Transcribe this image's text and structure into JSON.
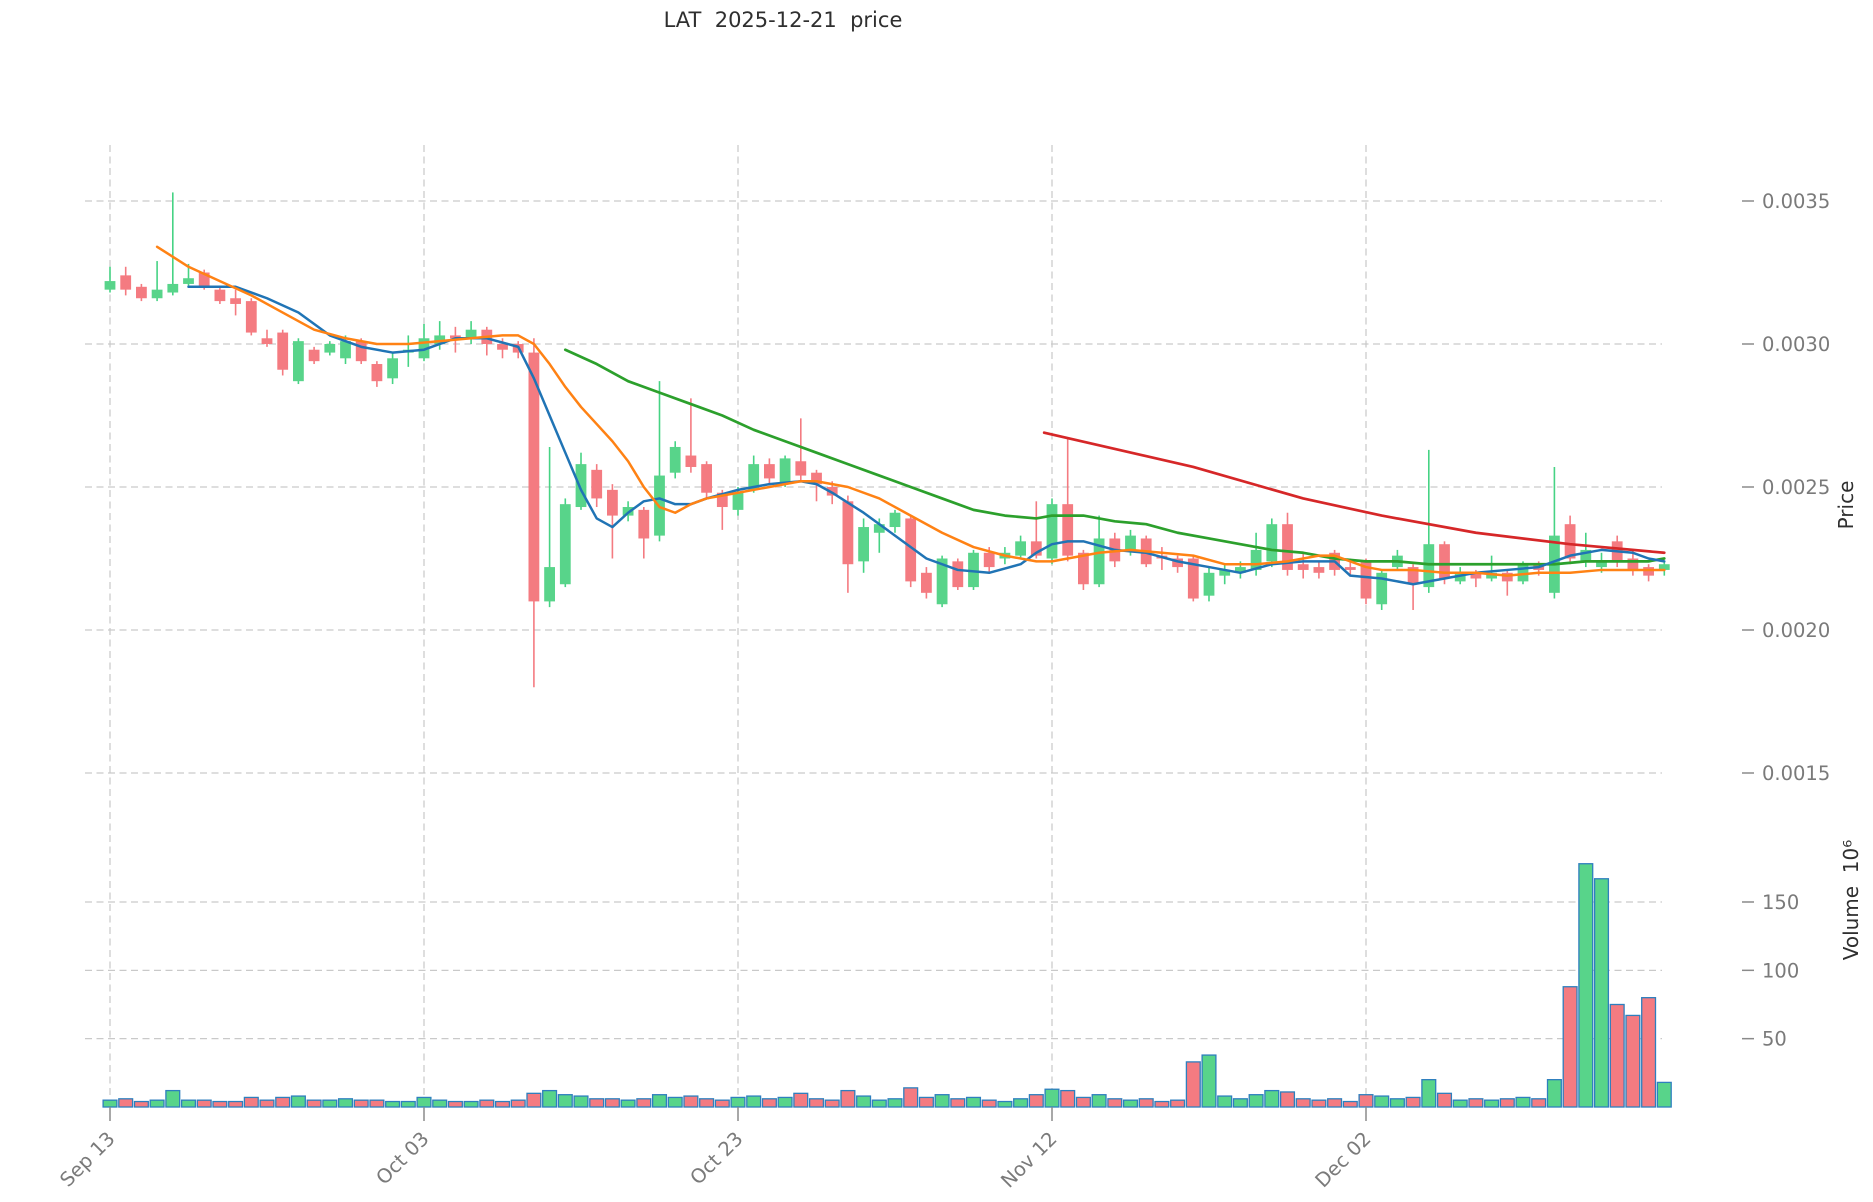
{
  "title": "LAT  2025-12-21  price",
  "axes": {
    "price_axis_label": "Price",
    "volume_axis_label": "Volume  10⁶",
    "price_tick_labels": [
      "0.0015",
      "0.0020",
      "0.0025",
      "0.0030",
      "0.0035"
    ],
    "price_tick_values": [
      15,
      20,
      25,
      30,
      35
    ],
    "volume_tick_labels": [
      "50",
      "100",
      "150"
    ],
    "volume_tick_values": [
      50,
      100,
      150
    ],
    "x_tick_labels": [
      "Sep 13",
      "Oct 03",
      "Oct 23",
      "Nov 12",
      "Dec 02"
    ],
    "x_tick_indices": [
      0,
      20,
      40,
      60,
      80
    ]
  },
  "colors": {
    "up": "#58d48a",
    "up_wick": "#46d384",
    "down": "#f47b81",
    "down_wick": "#f47b81",
    "volume_edge": "#2e7fbe",
    "ma_fast": "#2074b5",
    "ma_mid": "#ff8214",
    "ma_slow": "#2ca02c",
    "trendline": "#d62728",
    "grid": "#c9c9c9",
    "tick_text": "#7a7a7a",
    "title_text": "#2f2f2f"
  },
  "chart_data": {
    "type": "candlestick",
    "symbol": "LAT",
    "as_of_date": "2025-12-21",
    "start_date": "2025-09-13",
    "frequency": "daily",
    "units_note": "candles are [open,high,low,close,volume]; OHLC stored x1e-4 (32.2 = 0.00322); volume in millions",
    "ylim_price": [
      0.00148,
      0.0037
    ],
    "ylim_volume": [
      0,
      185
    ],
    "grid": true,
    "candles": [
      [
        31.9,
        32.7,
        31.8,
        32.2,
        5
      ],
      [
        32.4,
        32.7,
        31.7,
        31.9,
        6
      ],
      [
        32.0,
        32.1,
        31.5,
        31.6,
        4
      ],
      [
        31.6,
        32.9,
        31.5,
        31.9,
        5
      ],
      [
        31.8,
        35.3,
        31.7,
        32.1,
        12
      ],
      [
        32.1,
        32.8,
        32.0,
        32.3,
        5
      ],
      [
        32.5,
        32.6,
        31.9,
        32.0,
        5
      ],
      [
        31.9,
        32.0,
        31.4,
        31.5,
        4
      ],
      [
        31.6,
        31.9,
        31.0,
        31.4,
        4
      ],
      [
        31.5,
        31.6,
        30.3,
        30.4,
        7
      ],
      [
        30.2,
        30.5,
        29.9,
        30.0,
        5
      ],
      [
        30.4,
        30.5,
        28.9,
        29.1,
        7
      ],
      [
        28.7,
        30.2,
        28.6,
        30.1,
        8
      ],
      [
        29.8,
        29.9,
        29.3,
        29.4,
        5
      ],
      [
        29.7,
        30.1,
        29.6,
        30.0,
        5
      ],
      [
        29.5,
        30.3,
        29.3,
        30.1,
        6
      ],
      [
        30.1,
        30.2,
        29.3,
        29.4,
        5
      ],
      [
        29.3,
        29.4,
        28.5,
        28.7,
        5
      ],
      [
        28.8,
        29.7,
        28.6,
        29.5,
        4
      ],
      [
        29.7,
        30.3,
        29.2,
        29.8,
        4
      ],
      [
        29.5,
        30.7,
        29.4,
        30.2,
        7
      ],
      [
        30.0,
        30.8,
        29.8,
        30.3,
        5
      ],
      [
        30.3,
        30.6,
        29.7,
        30.2,
        4
      ],
      [
        30.2,
        30.8,
        30.0,
        30.5,
        4
      ],
      [
        30.5,
        30.6,
        29.6,
        30.0,
        5
      ],
      [
        30.0,
        30.2,
        29.5,
        29.8,
        4
      ],
      [
        30.0,
        30.1,
        29.5,
        29.7,
        5
      ],
      [
        29.7,
        30.2,
        18.0,
        21.0,
        10
      ],
      [
        21.0,
        26.4,
        20.8,
        22.2,
        12
      ],
      [
        21.6,
        24.6,
        21.5,
        24.4,
        9
      ],
      [
        24.3,
        26.2,
        24.2,
        25.8,
        8
      ],
      [
        25.6,
        25.8,
        24.3,
        24.6,
        6
      ],
      [
        24.9,
        25.1,
        22.5,
        24.0,
        6
      ],
      [
        24.0,
        24.5,
        23.8,
        24.3,
        5
      ],
      [
        24.2,
        24.3,
        22.5,
        23.2,
        6
      ],
      [
        23.3,
        28.7,
        23.1,
        25.4,
        9
      ],
      [
        25.5,
        26.6,
        25.3,
        26.4,
        7
      ],
      [
        26.1,
        28.1,
        25.5,
        25.7,
        8
      ],
      [
        25.8,
        25.9,
        24.6,
        24.8,
        6
      ],
      [
        24.8,
        24.9,
        23.5,
        24.3,
        5
      ],
      [
        24.2,
        25.0,
        24.0,
        24.8,
        7
      ],
      [
        24.9,
        26.1,
        24.8,
        25.8,
        8
      ],
      [
        25.8,
        26.0,
        25.1,
        25.3,
        6
      ],
      [
        25.1,
        26.1,
        25.0,
        26.0,
        7
      ],
      [
        25.9,
        27.4,
        25.2,
        25.4,
        10
      ],
      [
        25.5,
        25.6,
        24.5,
        25.1,
        6
      ],
      [
        25.0,
        25.2,
        24.4,
        24.7,
        5
      ],
      [
        24.5,
        24.7,
        21.3,
        22.3,
        12
      ],
      [
        22.4,
        23.9,
        22.0,
        23.6,
        8
      ],
      [
        23.4,
        23.9,
        22.7,
        23.7,
        5
      ],
      [
        23.6,
        24.2,
        23.4,
        24.1,
        6
      ],
      [
        23.9,
        24.0,
        21.5,
        21.7,
        14
      ],
      [
        22.0,
        22.2,
        21.1,
        21.3,
        7
      ],
      [
        20.9,
        22.6,
        20.8,
        22.5,
        9
      ],
      [
        22.4,
        22.5,
        21.4,
        21.5,
        6
      ],
      [
        21.5,
        22.8,
        21.4,
        22.7,
        7
      ],
      [
        22.7,
        22.9,
        22.0,
        22.2,
        5
      ],
      [
        22.5,
        22.9,
        22.3,
        22.7,
        4
      ],
      [
        22.6,
        23.3,
        22.5,
        23.1,
        6
      ],
      [
        23.1,
        24.5,
        22.5,
        22.6,
        9
      ],
      [
        22.5,
        24.6,
        22.3,
        24.4,
        13
      ],
      [
        24.4,
        26.7,
        22.4,
        22.6,
        12
      ],
      [
        22.7,
        22.8,
        21.4,
        21.6,
        7
      ],
      [
        21.6,
        24.0,
        21.5,
        23.2,
        9
      ],
      [
        23.2,
        23.4,
        22.2,
        22.4,
        6
      ],
      [
        22.8,
        23.5,
        22.6,
        23.3,
        5
      ],
      [
        23.2,
        23.3,
        22.2,
        22.3,
        6
      ],
      [
        22.6,
        22.9,
        22.1,
        22.5,
        4
      ],
      [
        22.5,
        22.6,
        22.0,
        22.2,
        5
      ],
      [
        22.5,
        22.6,
        21.0,
        21.1,
        33
      ],
      [
        21.2,
        22.2,
        21.0,
        22.0,
        38
      ],
      [
        21.9,
        22.3,
        21.6,
        22.1,
        8
      ],
      [
        22.0,
        22.4,
        21.8,
        22.2,
        6
      ],
      [
        22.1,
        23.4,
        21.9,
        22.8,
        9
      ],
      [
        22.4,
        23.9,
        22.2,
        23.7,
        12
      ],
      [
        23.7,
        24.1,
        21.9,
        22.1,
        11
      ],
      [
        22.3,
        22.7,
        21.8,
        22.1,
        6
      ],
      [
        22.2,
        22.4,
        21.8,
        22.0,
        5
      ],
      [
        22.7,
        22.8,
        21.9,
        22.1,
        6
      ],
      [
        22.2,
        22.5,
        21.9,
        22.1,
        4
      ],
      [
        22.4,
        22.5,
        20.9,
        21.1,
        9
      ],
      [
        20.9,
        22.1,
        20.7,
        22.0,
        8
      ],
      [
        22.2,
        22.8,
        22.1,
        22.6,
        6
      ],
      [
        22.2,
        22.3,
        20.7,
        21.6,
        7
      ],
      [
        21.5,
        26.3,
        21.3,
        23.0,
        20
      ],
      [
        23.0,
        23.1,
        21.6,
        21.8,
        10
      ],
      [
        21.7,
        22.2,
        21.6,
        22.0,
        5
      ],
      [
        22.0,
        22.1,
        21.5,
        21.8,
        6
      ],
      [
        21.8,
        22.6,
        21.7,
        22.0,
        5
      ],
      [
        22.0,
        22.1,
        21.2,
        21.7,
        6
      ],
      [
        21.7,
        22.4,
        21.6,
        22.3,
        7
      ],
      [
        22.3,
        22.4,
        21.9,
        22.1,
        6
      ],
      [
        21.3,
        25.7,
        21.1,
        23.3,
        20
      ],
      [
        23.7,
        24.0,
        22.3,
        22.5,
        88
      ],
      [
        22.4,
        23.4,
        22.2,
        22.8,
        178
      ],
      [
        22.2,
        22.7,
        22.0,
        22.4,
        167
      ],
      [
        23.1,
        23.3,
        22.2,
        22.4,
        75
      ],
      [
        22.5,
        22.8,
        21.9,
        22.1,
        67
      ],
      [
        22.2,
        22.3,
        21.7,
        21.9,
        80
      ],
      [
        22.1,
        22.4,
        21.9,
        22.3,
        18
      ]
    ],
    "ma_fast": [
      [
        5,
        32.0
      ],
      [
        8,
        32.0
      ],
      [
        10,
        31.6
      ],
      [
        12,
        31.1
      ],
      [
        14,
        30.3
      ],
      [
        16,
        29.9
      ],
      [
        18,
        29.7
      ],
      [
        20,
        29.8
      ],
      [
        22,
        30.2
      ],
      [
        24,
        30.2
      ],
      [
        26,
        29.9
      ],
      [
        27,
        28.8
      ],
      [
        28,
        27.5
      ],
      [
        29,
        26.2
      ],
      [
        30,
        24.9
      ],
      [
        31,
        23.9
      ],
      [
        32,
        23.6
      ],
      [
        33,
        24.1
      ],
      [
        34,
        24.5
      ],
      [
        35,
        24.6
      ],
      [
        36,
        24.4
      ],
      [
        37,
        24.4
      ],
      [
        38,
        24.6
      ],
      [
        40,
        24.9
      ],
      [
        42,
        25.1
      ],
      [
        44,
        25.2
      ],
      [
        45,
        25.1
      ],
      [
        46,
        24.8
      ],
      [
        48,
        24.1
      ],
      [
        50,
        23.3
      ],
      [
        52,
        22.5
      ],
      [
        54,
        22.1
      ],
      [
        56,
        22.0
      ],
      [
        58,
        22.3
      ],
      [
        59,
        22.7
      ],
      [
        60,
        23.0
      ],
      [
        61,
        23.1
      ],
      [
        62,
        23.1
      ],
      [
        64,
        22.8
      ],
      [
        66,
        22.7
      ],
      [
        68,
        22.4
      ],
      [
        70,
        22.2
      ],
      [
        72,
        22.0
      ],
      [
        74,
        22.3
      ],
      [
        76,
        22.4
      ],
      [
        78,
        22.4
      ],
      [
        79,
        21.9
      ],
      [
        81,
        21.8
      ],
      [
        83,
        21.6
      ],
      [
        85,
        21.8
      ],
      [
        87,
        22.0
      ],
      [
        89,
        22.1
      ],
      [
        91,
        22.2
      ],
      [
        93,
        22.6
      ],
      [
        95,
        22.8
      ],
      [
        97,
        22.7
      ],
      [
        98,
        22.5
      ],
      [
        99,
        22.4
      ]
    ],
    "ma_mid": [
      [
        3,
        33.4
      ],
      [
        5,
        32.7
      ],
      [
        7,
        32.2
      ],
      [
        9,
        31.7
      ],
      [
        11,
        31.1
      ],
      [
        13,
        30.5
      ],
      [
        15,
        30.2
      ],
      [
        17,
        30.0
      ],
      [
        19,
        30.0
      ],
      [
        21,
        30.1
      ],
      [
        23,
        30.2
      ],
      [
        25,
        30.3
      ],
      [
        26,
        30.3
      ],
      [
        27,
        30.0
      ],
      [
        28,
        29.3
      ],
      [
        29,
        28.5
      ],
      [
        30,
        27.8
      ],
      [
        31,
        27.2
      ],
      [
        32,
        26.6
      ],
      [
        33,
        25.9
      ],
      [
        34,
        25.0
      ],
      [
        35,
        24.3
      ],
      [
        36,
        24.1
      ],
      [
        37,
        24.4
      ],
      [
        38,
        24.6
      ],
      [
        40,
        24.8
      ],
      [
        42,
        25.0
      ],
      [
        44,
        25.2
      ],
      [
        45,
        25.2
      ],
      [
        47,
        25.0
      ],
      [
        49,
        24.6
      ],
      [
        51,
        24.0
      ],
      [
        53,
        23.4
      ],
      [
        55,
        22.9
      ],
      [
        57,
        22.6
      ],
      [
        59,
        22.4
      ],
      [
        60,
        22.4
      ],
      [
        61,
        22.5
      ],
      [
        63,
        22.7
      ],
      [
        65,
        22.8
      ],
      [
        67,
        22.7
      ],
      [
        69,
        22.6
      ],
      [
        71,
        22.3
      ],
      [
        73,
        22.3
      ],
      [
        75,
        22.4
      ],
      [
        77,
        22.6
      ],
      [
        78,
        22.6
      ],
      [
        80,
        22.2
      ],
      [
        81,
        22.1
      ],
      [
        83,
        22.1
      ],
      [
        85,
        22.0
      ],
      [
        87,
        22.0
      ],
      [
        89,
        21.9
      ],
      [
        91,
        22.0
      ],
      [
        93,
        22.0
      ],
      [
        95,
        22.1
      ],
      [
        97,
        22.1
      ],
      [
        99,
        22.1
      ]
    ],
    "ma_slow": [
      [
        29,
        29.8
      ],
      [
        31,
        29.3
      ],
      [
        33,
        28.7
      ],
      [
        35,
        28.3
      ],
      [
        37,
        27.9
      ],
      [
        39,
        27.5
      ],
      [
        41,
        27.0
      ],
      [
        43,
        26.6
      ],
      [
        45,
        26.2
      ],
      [
        47,
        25.8
      ],
      [
        49,
        25.4
      ],
      [
        51,
        25.0
      ],
      [
        53,
        24.6
      ],
      [
        55,
        24.2
      ],
      [
        57,
        24.0
      ],
      [
        59,
        23.9
      ],
      [
        60,
        24.0
      ],
      [
        62,
        24.0
      ],
      [
        64,
        23.8
      ],
      [
        66,
        23.7
      ],
      [
        68,
        23.4
      ],
      [
        70,
        23.2
      ],
      [
        72,
        23.0
      ],
      [
        74,
        22.8
      ],
      [
        76,
        22.7
      ],
      [
        78,
        22.5
      ],
      [
        80,
        22.4
      ],
      [
        82,
        22.4
      ],
      [
        84,
        22.3
      ],
      [
        86,
        22.3
      ],
      [
        88,
        22.3
      ],
      [
        90,
        22.3
      ],
      [
        92,
        22.3
      ],
      [
        94,
        22.4
      ],
      [
        96,
        22.4
      ],
      [
        98,
        22.4
      ],
      [
        99,
        22.5
      ]
    ],
    "trendline": [
      [
        59.5,
        26.9
      ],
      [
        69,
        25.7
      ],
      [
        76,
        24.6
      ],
      [
        81,
        24.0
      ],
      [
        87,
        23.4
      ],
      [
        93,
        23.0
      ],
      [
        99,
        22.7
      ]
    ]
  }
}
